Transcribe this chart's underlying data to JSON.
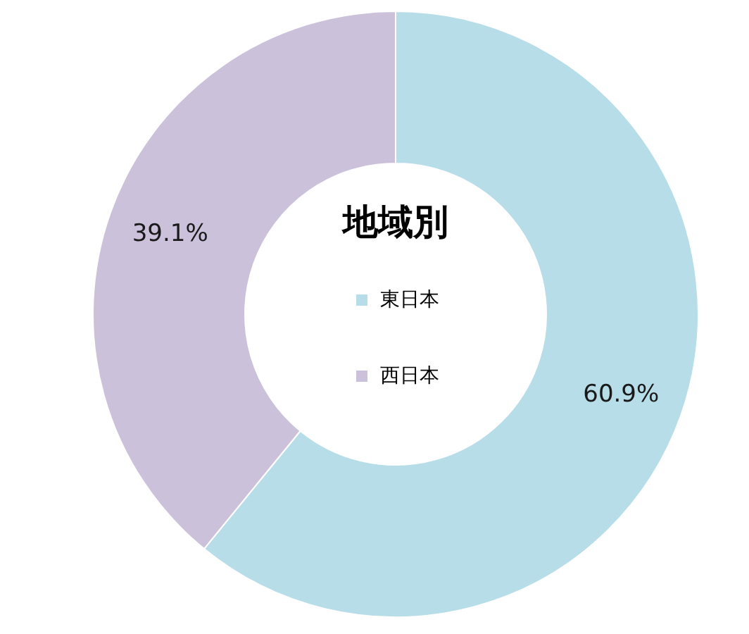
{
  "chart_data": {
    "type": "donut",
    "title": "地域別",
    "categories": [
      "東日本",
      "西日本"
    ],
    "values": [
      60.9,
      39.1
    ],
    "colors": [
      "#b7dde8",
      "#ccc1da"
    ],
    "value_labels": [
      "60.9%",
      "39.1%"
    ],
    "legend": "center"
  }
}
